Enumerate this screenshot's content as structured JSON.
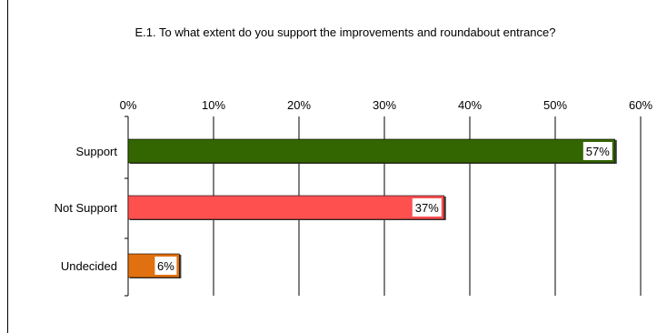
{
  "chart_data": {
    "type": "bar",
    "orientation": "horizontal",
    "title": "E.1. To what extent do you support the improvements and roundabout entrance?",
    "categories": [
      "Support",
      "Not Support",
      "Undecided"
    ],
    "values": [
      57,
      37,
      6
    ],
    "data_labels": [
      "57%",
      "37%",
      "6%"
    ],
    "bar_colors": [
      "#336600",
      "#ff5050",
      "#e07010"
    ],
    "xlim": [
      0,
      60
    ],
    "x_ticks": [
      0,
      10,
      20,
      30,
      40,
      50,
      60
    ],
    "x_tick_labels": [
      "0%",
      "10%",
      "20%",
      "30%",
      "40%",
      "50%",
      "60%"
    ],
    "x_axis_position": "top",
    "grid": true,
    "legend": "none",
    "xlabel": "",
    "ylabel": ""
  }
}
